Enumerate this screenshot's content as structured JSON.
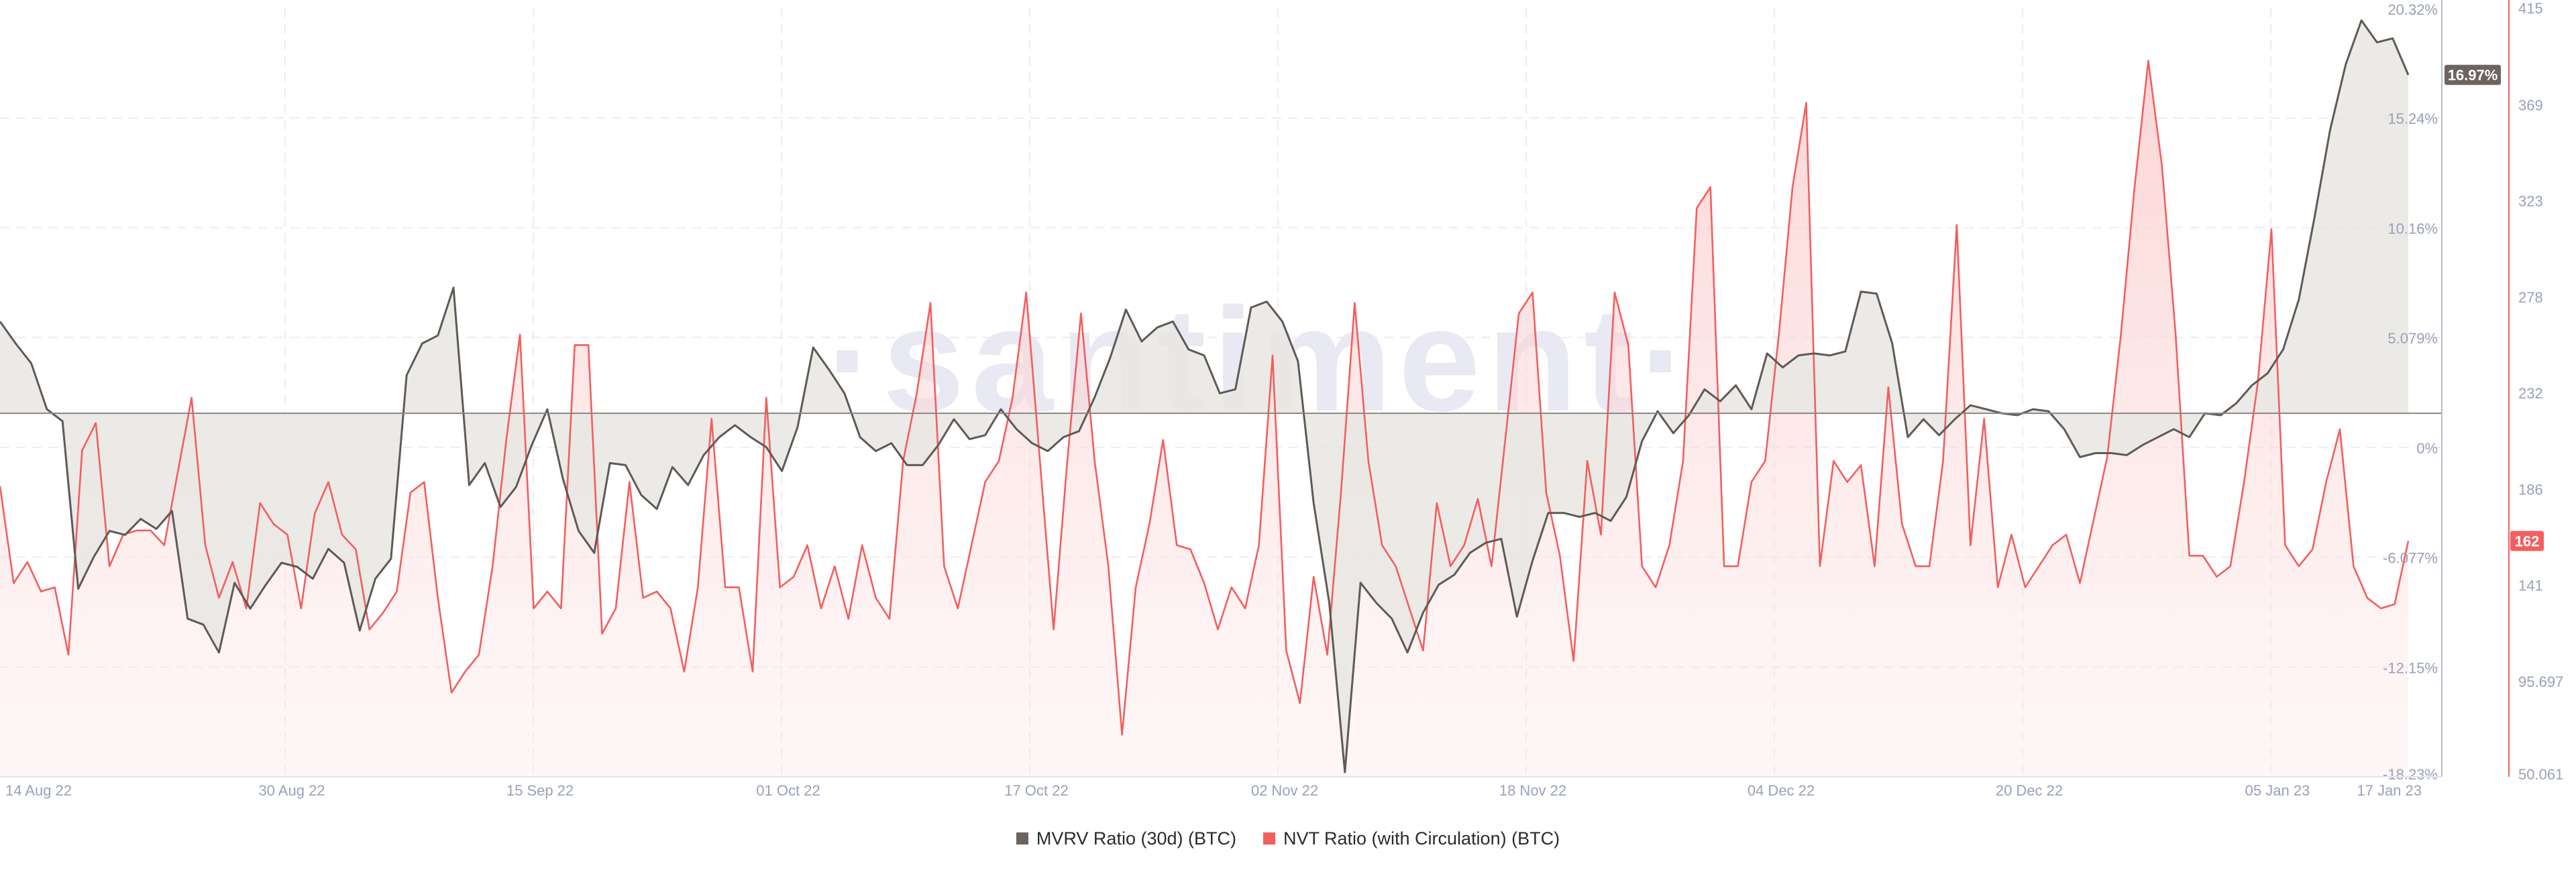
{
  "watermark": "·santiment·",
  "colors": {
    "mvrv_line": "#5f5a56",
    "mvrv_fill": "#e8e6e3",
    "nvt_line": "#f25f5f",
    "nvt_fill": "#fde3e3",
    "grid": "#ececf2",
    "axis_text": "#9aa0b8",
    "watermark": "#e8e9f3",
    "mvrv_badge": "#6b6461",
    "nvt_badge": "#f25f5f"
  },
  "chart_data": {
    "type": "line",
    "title": "",
    "x_tick_labels": [
      "14 Aug 22",
      "30 Aug 22",
      "15 Sep 22",
      "01 Oct 22",
      "17 Oct 22",
      "02 Nov 22",
      "18 Nov 22",
      "04 Dec 22",
      "20 Dec 22",
      "05 Jan 23",
      "17 Jan 23"
    ],
    "x_range": [
      "2022-08-14",
      "2023-01-17"
    ],
    "left_axis": {
      "series": "MVRV Ratio (30d) (BTC)",
      "unit": "%",
      "ylim": [
        -18.23,
        20.32
      ],
      "ticks": [
        "20.32%",
        "15.24%",
        "10.16%",
        "5.079%",
        "0%",
        "-6.077%",
        "-12.15%",
        "-18.23%"
      ]
    },
    "right_axis": {
      "series": "NVT Ratio (with Circulation) (BTC)",
      "ylim": [
        50.061,
        415
      ],
      "ticks": [
        "415",
        "369",
        "323",
        "278",
        "232",
        "186",
        "141",
        "95.697",
        "50.061"
      ]
    },
    "current_value_labels": {
      "mvrv": "16.97%",
      "nvt": "162"
    },
    "series": [
      {
        "name": "MVRV Ratio (30d) (BTC)",
        "axis": "left",
        "values": [
          4.6,
          3.5,
          2.5,
          0.2,
          -0.4,
          -8.8,
          -7.2,
          -5.9,
          -6.1,
          -5.3,
          -5.8,
          -4.9,
          -10.3,
          -10.6,
          -12.0,
          -8.5,
          -9.8,
          -8.6,
          -7.5,
          -7.7,
          -8.3,
          -6.8,
          -7.5,
          -10.9,
          -8.3,
          -7.3,
          1.9,
          3.5,
          3.9,
          6.3,
          -3.6,
          -2.5,
          -4.7,
          -3.7,
          -1.6,
          0.2,
          -3.3,
          -5.9,
          -7.0,
          -2.5,
          -2.6,
          -4.1,
          -4.8,
          -2.7,
          -3.6,
          -2.1,
          -1.2,
          -0.6,
          -1.2,
          -1.7,
          -2.9,
          -0.7,
          3.3,
          2.2,
          1.0,
          -1.2,
          -1.9,
          -1.5,
          -2.6,
          -2.6,
          -1.6,
          -0.3,
          -1.3,
          -1.1,
          0.2,
          -0.8,
          -1.5,
          -1.9,
          -1.2,
          -0.9,
          0.8,
          2.8,
          5.2,
          3.6,
          4.3,
          4.6,
          3.2,
          2.9,
          1.0,
          1.2,
          5.3,
          5.6,
          4.6,
          2.6,
          -4.5,
          -9.5,
          -18.0,
          -8.5,
          -9.5,
          -10.3,
          -12.0,
          -10.0,
          -8.6,
          -8.1,
          -7.0,
          -6.5,
          -6.3,
          -10.2,
          -7.4,
          -5.0,
          -5.0,
          -5.2,
          -5.0,
          -5.4,
          -4.2,
          -1.4,
          0.1,
          -1.0,
          -0.1,
          1.2,
          0.6,
          1.4,
          0.2,
          3.0,
          2.3,
          2.9,
          3.0,
          2.9,
          3.1,
          6.1,
          6.0,
          3.5,
          -1.2,
          -0.3,
          -1.1,
          -0.3,
          0.4,
          0.2,
          0.0,
          -0.1,
          0.2,
          0.1,
          -0.8,
          -2.2,
          -2.0,
          -2.0,
          -2.1,
          -1.6,
          -1.2,
          -0.8,
          -1.2,
          0.0,
          -0.1,
          0.5,
          1.4,
          2.0,
          3.2,
          5.7,
          9.8,
          14.2,
          17.5,
          19.7,
          18.6,
          18.8,
          16.97
        ]
      },
      {
        "name": "NVT Ratio (with Circulation) (BTC)",
        "axis": "right",
        "values": [
          188,
          142,
          152,
          138,
          140,
          108,
          205,
          218,
          150,
          165,
          167,
          167,
          160,
          195,
          230,
          160,
          135,
          152,
          130,
          180,
          170,
          165,
          130,
          175,
          190,
          165,
          158,
          120,
          128,
          138,
          185,
          190,
          135,
          90,
          100,
          108,
          150,
          210,
          260,
          130,
          138,
          130,
          255,
          255,
          118,
          130,
          190,
          135,
          138,
          130,
          100,
          140,
          220,
          140,
          140,
          100,
          230,
          140,
          145,
          160,
          130,
          150,
          125,
          160,
          135,
          125,
          200,
          232,
          275,
          150,
          130,
          160,
          190,
          200,
          230,
          280,
          200,
          120,
          200,
          270,
          200,
          150,
          70,
          140,
          170,
          210,
          160,
          158,
          142,
          120,
          140,
          130,
          160,
          250,
          110,
          85,
          145,
          108,
          185,
          275,
          200,
          160,
          150,
          130,
          110,
          180,
          150,
          160,
          182,
          150,
          210,
          270,
          280,
          185,
          155,
          105,
          200,
          165,
          280,
          255,
          150,
          140,
          160,
          200,
          320,
          330,
          150,
          150,
          190,
          200,
          260,
          330,
          370,
          150,
          200,
          190,
          198,
          150,
          235,
          170,
          150,
          150,
          200,
          312,
          160,
          220,
          140,
          165,
          140,
          150,
          160,
          165,
          142,
          172,
          202,
          260,
          330,
          390,
          340,
          260,
          155,
          155,
          145,
          150,
          190,
          237,
          310,
          160,
          150,
          158,
          190,
          215,
          150,
          135,
          130,
          132,
          162
        ]
      }
    ]
  },
  "legend": {
    "items": [
      {
        "label": "MVRV Ratio (30d) (BTC)",
        "color": "#6b6461"
      },
      {
        "label": "NVT Ratio (with Circulation) (BTC)",
        "color": "#f25f5f"
      }
    ]
  }
}
